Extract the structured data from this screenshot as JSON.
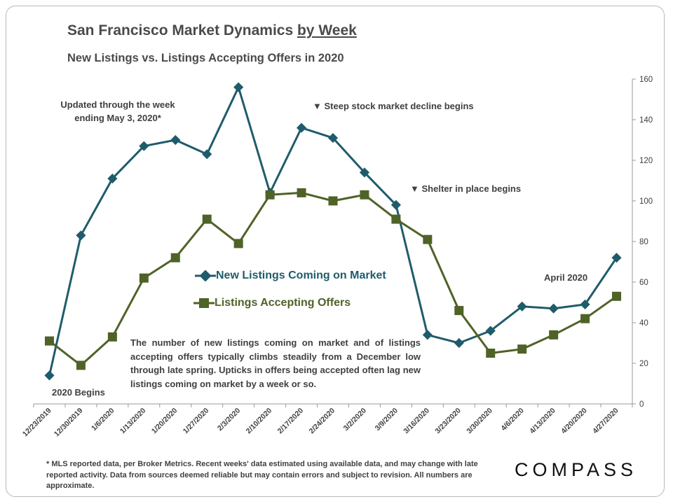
{
  "title": {
    "main": "San Francisco Market Dynamics",
    "underlined": "by Week"
  },
  "subtitle": "New Listings vs. Listings Accepting Offers in 2020",
  "annotations": {
    "updated": "Updated through the week ending May 3, 2020*",
    "stock_decline": "Steep stock market decline begins",
    "shelter": "Shelter in place begins",
    "april": "April 2020",
    "begins": "2020 Begins",
    "marker_glyph": "▼"
  },
  "description": "The number of new listings coming on market and of listings accepting offers typically climbs steadily from a December low through late spring. Upticks in offers being accepted often lag new listings coming on market by a week or so.",
  "footnote": "* MLS reported data, per Broker Metrics. Recent weeks' data estimated using available data, and may change with late reported activity. Data from sources deemed reliable but may contain errors and subject to revision. All numbers are approximate.",
  "logo": "COMPASS",
  "colors": {
    "new_listings": "#1f5c6b",
    "accepting_offers": "#4f6228",
    "axis": "#9a9a9a",
    "text": "#404040"
  },
  "chart_data": {
    "type": "line",
    "categories": [
      "12/23/2019",
      "12/30/2019",
      "1/6/2020",
      "1/13/2020",
      "1/20/2020",
      "1/27/2020",
      "2/3/2020",
      "2/10/2020",
      "2/17/2020",
      "2/24/2020",
      "3/2/2020",
      "3/9/2020",
      "3/16/2020",
      "3/23/2020",
      "3/30/2020",
      "4/6/2020",
      "4/13/2020",
      "4/20/2020",
      "4/27/2020"
    ],
    "series": [
      {
        "name": "New Listings Coming on Market",
        "marker": "diamond",
        "color": "#1f5c6b",
        "values": [
          14,
          83,
          111,
          127,
          130,
          123,
          156,
          104,
          136,
          131,
          114,
          98,
          34,
          30,
          36,
          48,
          47,
          49,
          72
        ]
      },
      {
        "name": "Listings Accepting Offers",
        "marker": "square",
        "color": "#4f6228",
        "values": [
          31,
          19,
          33,
          62,
          72,
          91,
          79,
          103,
          104,
          100,
          103,
          91,
          81,
          46,
          25,
          27,
          34,
          42,
          53
        ]
      }
    ],
    "ylim": [
      0,
      160
    ],
    "yticks": [
      0,
      20,
      40,
      60,
      80,
      100,
      120,
      140,
      160
    ],
    "y_axis_side": "right",
    "grid": false,
    "legend": "center-left"
  }
}
